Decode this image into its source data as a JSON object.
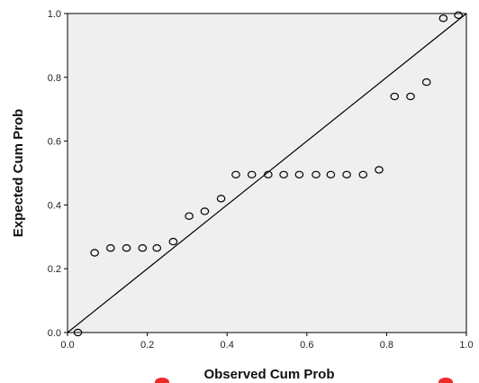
{
  "chart_data": {
    "type": "scatter",
    "title": "",
    "xlabel": "Observed Cum Prob",
    "ylabel": "Expected Cum Prob",
    "xlim": [
      0.0,
      1.0
    ],
    "ylim": [
      0.0,
      1.0
    ],
    "x_ticks": [
      "0.0",
      "0.2",
      "0.4",
      "0.6",
      "0.8",
      "1.0"
    ],
    "y_ticks": [
      "0.0",
      "0.2",
      "0.4",
      "0.6",
      "0.8",
      "1.0"
    ],
    "grid": false,
    "reference_line": {
      "x": [
        0.0,
        1.0
      ],
      "y": [
        0.0,
        1.0
      ]
    },
    "series": [
      {
        "x": [
          0.026,
          0.068,
          0.108,
          0.148,
          0.188,
          0.224,
          0.265,
          0.305,
          0.344,
          0.385,
          0.422,
          0.462,
          0.503,
          0.542,
          0.581,
          0.623,
          0.66,
          0.7,
          0.741,
          0.781,
          0.82,
          0.86,
          0.9,
          0.942,
          0.98
        ],
        "y": [
          0.0,
          0.25,
          0.265,
          0.265,
          0.265,
          0.265,
          0.285,
          0.365,
          0.38,
          0.42,
          0.495,
          0.495,
          0.495,
          0.495,
          0.495,
          0.495,
          0.495,
          0.495,
          0.495,
          0.51,
          0.74,
          0.74,
          0.785,
          0.985,
          0.995
        ]
      }
    ]
  },
  "colors": {
    "plot_background": "#efefef",
    "marker_stroke": "#000000",
    "line": "#000000",
    "marker_clip": "#ee2b2b"
  }
}
